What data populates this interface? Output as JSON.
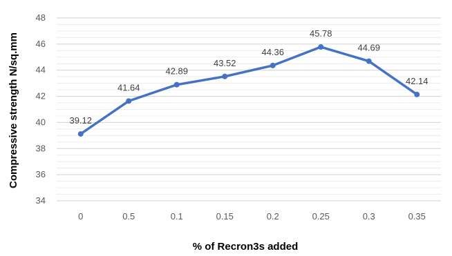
{
  "chart_data": {
    "type": "line",
    "title": "",
    "xlabel": "% of Recron3s added",
    "ylabel": "Compressive strength N/sq.mm",
    "categories": [
      "0",
      "0.5",
      "0.1",
      "0.15",
      "0.2",
      "0.25",
      "0.3",
      "0.35"
    ],
    "series": [
      {
        "values": [
          39.12,
          41.64,
          42.89,
          43.52,
          44.36,
          45.78,
          44.69,
          42.14
        ],
        "data_labels": [
          "39.12",
          "41.64",
          "42.89",
          "43.52",
          "44.36",
          "45.78",
          "44.69",
          "42.14"
        ],
        "color": "#4472C4"
      }
    ],
    "ylim": [
      34,
      48
    ],
    "yticks": [
      "34",
      "36",
      "38",
      "40",
      "42",
      "44",
      "46",
      "48"
    ],
    "grid": true,
    "legend": "none"
  }
}
